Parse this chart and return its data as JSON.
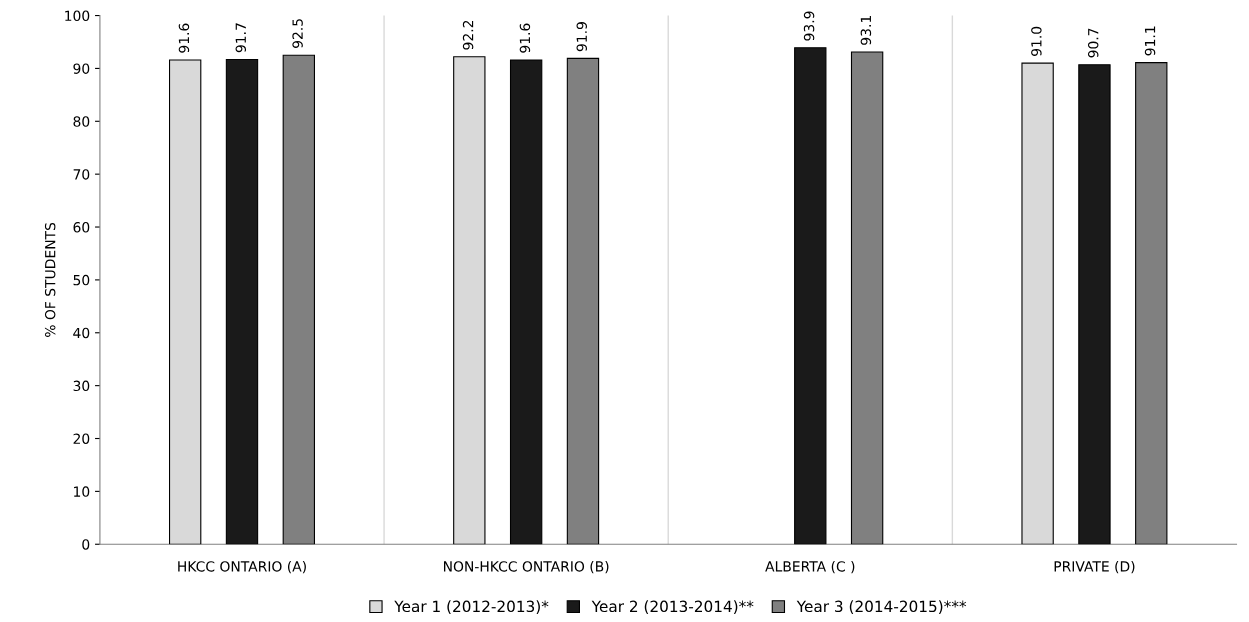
{
  "chart_data": {
    "type": "bar",
    "ylabel": "% OF STUDENTS",
    "categories": [
      "HKCC ONTARIO (A)",
      "NON-HKCC ONTARIO (B)",
      "ALBERTA (C )",
      "PRIVATE (D)"
    ],
    "series": [
      {
        "name": "Year 1 (2012-2013)*",
        "color": "#d9d9d9",
        "values": [
          91.6,
          92.2,
          null,
          91.0
        ],
        "value_labels": [
          "91.6",
          "92.2",
          null,
          "91.0"
        ]
      },
      {
        "name": "Year 2 (2013-2014)**",
        "color": "#1a1a1a",
        "values": [
          91.7,
          91.6,
          93.9,
          90.7
        ],
        "value_labels": [
          "91.7",
          "91.6",
          "93.9",
          "90.7"
        ]
      },
      {
        "name": "Year 3 (2014-2015)***",
        "color": "#808080",
        "values": [
          92.5,
          91.9,
          93.1,
          91.1
        ],
        "value_labels": [
          "92.5",
          "91.9",
          "93.1",
          "91.1"
        ]
      }
    ],
    "ylim": [
      0,
      100
    ],
    "yticks": [
      0,
      10,
      20,
      30,
      40,
      50,
      60,
      70,
      80,
      90,
      100
    ],
    "grid": "x",
    "legend": "bottom"
  }
}
